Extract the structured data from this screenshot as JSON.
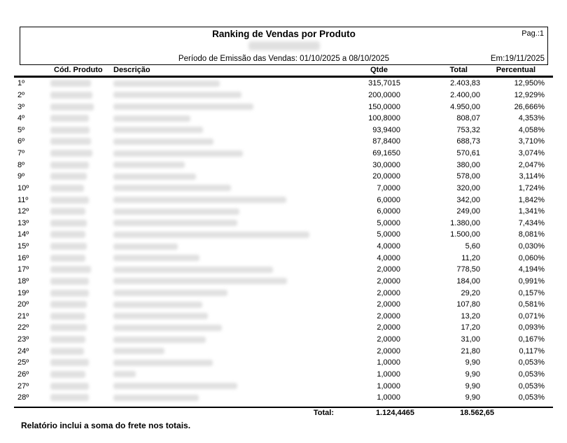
{
  "report": {
    "title": "Ranking de Vendas por Produto",
    "page_label": "Pag.:1",
    "period_line": "Período de Emissão das Vendas: 01/10/2025 a 08/10/2025",
    "emission_label": "Em:19/11/2025",
    "footer_note": "Relatório inclui a soma do frete nos totais."
  },
  "colors": {
    "text": "#000000",
    "rule": "#000000",
    "redaction": "#d9d9d9",
    "background": "#ffffff"
  },
  "table": {
    "headers": {
      "code": "Cód. Produto",
      "description": "Descrição",
      "qty": "Qtde",
      "total": "Total",
      "percent": "Percentual"
    },
    "rows": [
      {
        "rank": "1º",
        "qty": "315,7015",
        "total": "2.403,83",
        "percent": "12,950%",
        "code_w": 58,
        "desc_w": 152
      },
      {
        "rank": "2º",
        "qty": "200,0000",
        "total": "2.400,00",
        "percent": "12,929%",
        "code_w": 60,
        "desc_w": 183
      },
      {
        "rank": "3º",
        "qty": "150,0000",
        "total": "4.950,00",
        "percent": "26,666%",
        "code_w": 62,
        "desc_w": 200
      },
      {
        "rank": "4º",
        "qty": "100,8000",
        "total": "808,07",
        "percent": "4,353%",
        "code_w": 55,
        "desc_w": 110
      },
      {
        "rank": "5º",
        "qty": "93,9400",
        "total": "753,32",
        "percent": "4,058%",
        "code_w": 56,
        "desc_w": 128
      },
      {
        "rank": "6º",
        "qty": "87,8400",
        "total": "688,73",
        "percent": "3,710%",
        "code_w": 58,
        "desc_w": 143
      },
      {
        "rank": "7º",
        "qty": "69,1650",
        "total": "570,61",
        "percent": "3,074%",
        "code_w": 60,
        "desc_w": 185
      },
      {
        "rank": "8º",
        "qty": "30,0000",
        "total": "380,00",
        "percent": "2,047%",
        "code_w": 55,
        "desc_w": 102
      },
      {
        "rank": "9º",
        "qty": "20,0000",
        "total": "578,00",
        "percent": "3,114%",
        "code_w": 52,
        "desc_w": 118
      },
      {
        "rank": "10º",
        "qty": "7,0000",
        "total": "320,00",
        "percent": "1,724%",
        "code_w": 48,
        "desc_w": 168
      },
      {
        "rank": "11º",
        "qty": "6,0000",
        "total": "342,00",
        "percent": "1,842%",
        "code_w": 55,
        "desc_w": 247
      },
      {
        "rank": "12º",
        "qty": "6,0000",
        "total": "249,00",
        "percent": "1,341%",
        "code_w": 50,
        "desc_w": 180
      },
      {
        "rank": "13º",
        "qty": "5,0000",
        "total": "1.380,00",
        "percent": "7,434%",
        "code_w": 52,
        "desc_w": 177
      },
      {
        "rank": "14º",
        "qty": "5,0000",
        "total": "1.500,00",
        "percent": "8,081%",
        "code_w": 50,
        "desc_w": 300
      },
      {
        "rank": "15º",
        "qty": "4,0000",
        "total": "5,60",
        "percent": "0,030%",
        "code_w": 52,
        "desc_w": 92
      },
      {
        "rank": "16º",
        "qty": "4,0000",
        "total": "11,20",
        "percent": "0,060%",
        "code_w": 50,
        "desc_w": 123
      },
      {
        "rank": "17º",
        "qty": "2,0000",
        "total": "778,50",
        "percent": "4,194%",
        "code_w": 58,
        "desc_w": 228
      },
      {
        "rank": "18º",
        "qty": "2,0000",
        "total": "184,00",
        "percent": "0,991%",
        "code_w": 55,
        "desc_w": 248
      },
      {
        "rank": "19º",
        "qty": "2,0000",
        "total": "29,20",
        "percent": "0,157%",
        "code_w": 55,
        "desc_w": 163
      },
      {
        "rank": "20º",
        "qty": "2,0000",
        "total": "107,80",
        "percent": "0,581%",
        "code_w": 52,
        "desc_w": 127
      },
      {
        "rank": "21º",
        "qty": "2,0000",
        "total": "13,20",
        "percent": "0,071%",
        "code_w": 50,
        "desc_w": 135
      },
      {
        "rank": "22º",
        "qty": "2,0000",
        "total": "17,20",
        "percent": "0,093%",
        "code_w": 52,
        "desc_w": 155
      },
      {
        "rank": "23º",
        "qty": "2,0000",
        "total": "31,00",
        "percent": "0,167%",
        "code_w": 50,
        "desc_w": 132
      },
      {
        "rank": "24º",
        "qty": "2,0000",
        "total": "21,80",
        "percent": "0,117%",
        "code_w": 48,
        "desc_w": 73
      },
      {
        "rank": "25º",
        "qty": "1,0000",
        "total": "9,90",
        "percent": "0,053%",
        "code_w": 55,
        "desc_w": 142
      },
      {
        "rank": "26º",
        "qty": "1,0000",
        "total": "9,90",
        "percent": "0,053%",
        "code_w": 50,
        "desc_w": 32
      },
      {
        "rank": "27º",
        "qty": "1,0000",
        "total": "9,90",
        "percent": "0,053%",
        "code_w": 55,
        "desc_w": 177
      },
      {
        "rank": "28º",
        "qty": "1,0000",
        "total": "9,90",
        "percent": "0,053%",
        "code_w": 55,
        "desc_w": 122
      }
    ],
    "total_row": {
      "label": "Total:",
      "qty": "1.124,4465",
      "total": "18.562,65"
    }
  }
}
